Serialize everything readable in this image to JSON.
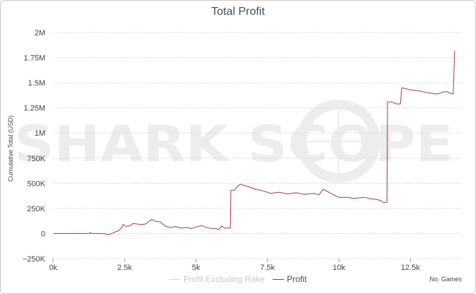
{
  "chart_data": {
    "type": "line",
    "title": "Total Profit",
    "xlabel": "No. Games",
    "ylabel": "Cumulative Total (USD)",
    "xlim": [
      0,
      14300
    ],
    "ylim": [
      -250000,
      2000000
    ],
    "x_ticks": [
      {
        "v": 0,
        "label": "0k"
      },
      {
        "v": 2500,
        "label": "2.5k"
      },
      {
        "v": 5000,
        "label": "5k"
      },
      {
        "v": 7500,
        "label": "7.5k"
      },
      {
        "v": 10000,
        "label": "10k"
      },
      {
        "v": 12500,
        "label": "12.5k"
      }
    ],
    "y_ticks": [
      {
        "v": -250000,
        "label": "−250K"
      },
      {
        "v": 0,
        "label": "0"
      },
      {
        "v": 250000,
        "label": "250K"
      },
      {
        "v": 500000,
        "label": "500K"
      },
      {
        "v": 750000,
        "label": "750K"
      },
      {
        "v": 1000000,
        "label": "1M"
      },
      {
        "v": 1250000,
        "label": "1.25M"
      },
      {
        "v": 1500000,
        "label": "1.5M"
      },
      {
        "v": 1750000,
        "label": "1.75M"
      },
      {
        "v": 2000000,
        "label": "2M"
      }
    ],
    "grid": true,
    "legend": "bottom",
    "watermark": "SHARK SCOPE",
    "series": [
      {
        "name": "Profit Excluding Rake",
        "color": "#d8d8d8",
        "visible": false,
        "points": []
      },
      {
        "name": "Profit",
        "color": "#a33a3a",
        "visible": true,
        "points": [
          [
            0,
            0
          ],
          [
            1250,
            0
          ],
          [
            1300,
            10000
          ],
          [
            1350,
            0
          ],
          [
            1700,
            0
          ],
          [
            1950,
            -10000
          ],
          [
            2100,
            5000
          ],
          [
            2200,
            20000
          ],
          [
            2300,
            30000
          ],
          [
            2400,
            60000
          ],
          [
            2450,
            90000
          ],
          [
            2550,
            70000
          ],
          [
            2700,
            80000
          ],
          [
            2800,
            100000
          ],
          [
            2900,
            95000
          ],
          [
            3100,
            90000
          ],
          [
            3250,
            95000
          ],
          [
            3350,
            120000
          ],
          [
            3450,
            140000
          ],
          [
            3600,
            120000
          ],
          [
            3750,
            115000
          ],
          [
            3850,
            90000
          ],
          [
            3950,
            70000
          ],
          [
            4100,
            60000
          ],
          [
            4300,
            70000
          ],
          [
            4450,
            55000
          ],
          [
            4650,
            60000
          ],
          [
            4850,
            50000
          ],
          [
            5000,
            65000
          ],
          [
            5200,
            80000
          ],
          [
            5300,
            65000
          ],
          [
            5500,
            50000
          ],
          [
            5700,
            50000
          ],
          [
            5800,
            40000
          ],
          [
            5900,
            75000
          ],
          [
            6000,
            55000
          ],
          [
            6150,
            55000
          ],
          [
            6200,
            55000
          ],
          [
            6220,
            430000
          ],
          [
            6350,
            430000
          ],
          [
            6450,
            470000
          ],
          [
            6550,
            490000
          ],
          [
            6800,
            470000
          ],
          [
            7100,
            440000
          ],
          [
            7400,
            420000
          ],
          [
            7600,
            400000
          ],
          [
            7900,
            410000
          ],
          [
            8200,
            395000
          ],
          [
            8500,
            405000
          ],
          [
            8800,
            390000
          ],
          [
            9100,
            400000
          ],
          [
            9300,
            385000
          ],
          [
            9450,
            440000
          ],
          [
            9650,
            410000
          ],
          [
            9850,
            380000
          ],
          [
            10000,
            360000
          ],
          [
            10300,
            360000
          ],
          [
            10500,
            350000
          ],
          [
            10700,
            355000
          ],
          [
            10900,
            360000
          ],
          [
            11100,
            345000
          ],
          [
            11300,
            340000
          ],
          [
            11450,
            330000
          ],
          [
            11550,
            310000
          ],
          [
            11680,
            310000
          ],
          [
            11700,
            1310000
          ],
          [
            11850,
            1310000
          ],
          [
            12000,
            1290000
          ],
          [
            12150,
            1290000
          ],
          [
            12200,
            1450000
          ],
          [
            12500,
            1430000
          ],
          [
            12800,
            1420000
          ],
          [
            13100,
            1400000
          ],
          [
            13350,
            1390000
          ],
          [
            13500,
            1390000
          ],
          [
            13650,
            1410000
          ],
          [
            13800,
            1410000
          ],
          [
            13950,
            1390000
          ],
          [
            14000,
            1390000
          ],
          [
            14050,
            1820000
          ]
        ]
      }
    ]
  }
}
